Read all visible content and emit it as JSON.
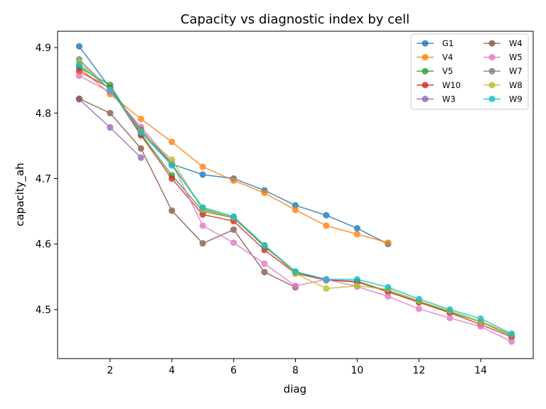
{
  "chart_data": {
    "type": "line",
    "title": "Capacity vs diagnostic index by cell",
    "xlabel": "diag",
    "ylabel": "capacity_ah",
    "xlim": [
      0.3,
      15.7
    ],
    "ylim": [
      4.425,
      4.925
    ],
    "xticks": [
      2,
      4,
      6,
      8,
      10,
      12,
      14
    ],
    "yticks": [
      4.5,
      4.6,
      4.7,
      4.8,
      4.9
    ],
    "legend_position": "top-right",
    "grid": false,
    "series": [
      {
        "name": "G1",
        "color": "#1f77b4",
        "x": [
          1,
          2,
          3,
          4,
          5,
          6,
          7,
          8,
          9,
          10,
          11
        ],
        "y": [
          4.902,
          4.838,
          4.773,
          4.722,
          4.706,
          4.7,
          4.682,
          4.659,
          4.644,
          4.624,
          4.6
        ]
      },
      {
        "name": "V4",
        "color": "#ff7f0e",
        "x": [
          1,
          2,
          3,
          4,
          5,
          6,
          7,
          8,
          9,
          10,
          11
        ],
        "y": [
          4.87,
          4.829,
          4.791,
          4.756,
          4.718,
          4.697,
          4.678,
          4.652,
          4.628,
          4.615,
          4.602
        ]
      },
      {
        "name": "V5",
        "color": "#2ca02c",
        "x": [
          1,
          2,
          3,
          4,
          5,
          6,
          7,
          8,
          9,
          10,
          11,
          12,
          13,
          14,
          15
        ],
        "y": [
          4.87,
          4.843,
          4.768,
          4.705,
          4.65,
          4.64,
          4.596,
          4.557,
          4.545,
          4.543,
          4.528,
          4.512,
          4.496,
          4.481,
          4.46
        ]
      },
      {
        "name": "W10",
        "color": "#d62728",
        "x": [
          1,
          2,
          3,
          4,
          5,
          6,
          7,
          8,
          9,
          10,
          11,
          12,
          13,
          14,
          15
        ],
        "y": [
          4.864,
          4.838,
          4.766,
          4.7,
          4.645,
          4.635,
          4.591,
          4.555,
          4.545,
          4.542,
          4.527,
          4.511,
          4.495,
          4.477,
          4.458
        ]
      },
      {
        "name": "W3",
        "color": "#9467bd",
        "x": [
          1,
          2,
          3
        ],
        "y": [
          4.821,
          4.778,
          4.732
        ]
      },
      {
        "name": "W4",
        "color": "#8c564b",
        "x": [
          1,
          2,
          3,
          4,
          5,
          6,
          7,
          8
        ],
        "y": [
          4.822,
          4.8,
          4.746,
          4.651,
          4.601,
          4.622,
          4.557,
          4.534
        ]
      },
      {
        "name": "W5",
        "color": "#e377c2",
        "x": [
          1,
          2,
          3,
          4,
          5,
          6,
          7,
          8,
          9,
          10,
          11,
          12,
          13,
          14,
          15
        ],
        "y": [
          4.857,
          4.832,
          4.779,
          4.724,
          4.628,
          4.602,
          4.57,
          4.536,
          4.546,
          4.535,
          4.52,
          4.501,
          4.487,
          4.474,
          4.451
        ]
      },
      {
        "name": "W7",
        "color": "#7f7f7f",
        "x": [
          1,
          2,
          3,
          4,
          5,
          6,
          7,
          8
        ],
        "y": [
          4.882,
          4.835,
          4.775,
          4.722,
          4.654,
          4.64,
          4.597,
          4.557
        ]
      },
      {
        "name": "W8",
        "color": "#bcbd22",
        "x": [
          1,
          2,
          3,
          4,
          5,
          6,
          7,
          8,
          9,
          10,
          11,
          12,
          13,
          14,
          15
        ],
        "y": [
          4.878,
          4.836,
          4.771,
          4.729,
          4.652,
          4.641,
          4.598,
          4.555,
          4.532,
          4.536,
          4.531,
          4.513,
          4.498,
          4.482,
          4.462
        ]
      },
      {
        "name": "W9",
        "color": "#17becf",
        "x": [
          1,
          2,
          3,
          4,
          5,
          6,
          7,
          8,
          9,
          10,
          11,
          12,
          13,
          14,
          15
        ],
        "y": [
          4.874,
          4.836,
          4.77,
          4.72,
          4.656,
          4.642,
          4.598,
          4.558,
          4.546,
          4.546,
          4.534,
          4.516,
          4.5,
          4.486,
          4.463
        ]
      }
    ]
  }
}
